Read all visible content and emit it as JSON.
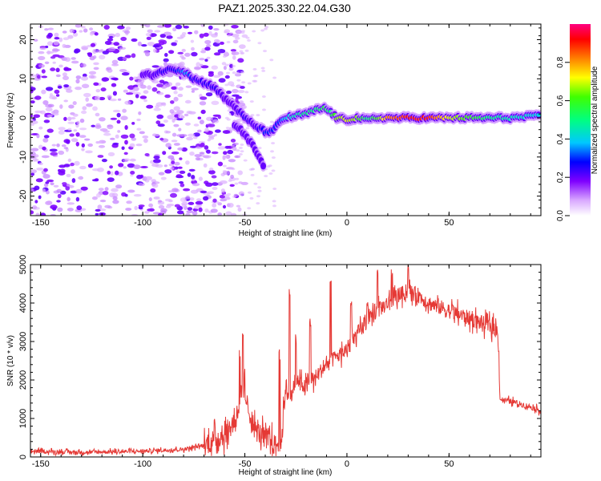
{
  "title": "PAZ1.2025.330.22.04.G30",
  "chart_data": [
    {
      "type": "heatmap",
      "xlabel": "Height of straight line (km)",
      "ylabel": "Frequency (Hz)",
      "xlim": [
        -155,
        95
      ],
      "ylim": [
        -25,
        24
      ],
      "xticks": [
        -150,
        -100,
        -50,
        0,
        50
      ],
      "yticks": [
        -20,
        -10,
        0,
        10,
        20
      ],
      "colorbar": {
        "label": "Normalized spectral amplitude",
        "range": [
          0.0,
          1.0
        ],
        "ticks": [
          0.0,
          0.2,
          0.4,
          0.6,
          0.8
        ],
        "tick_labels": [
          "0.0",
          "0.2",
          "0.4",
          "0.6",
          "0.8"
        ]
      },
      "ridge": [
        {
          "x": -100,
          "f": 11,
          "a": 0.2
        },
        {
          "x": -95,
          "f": 11,
          "a": 0.2
        },
        {
          "x": -90,
          "f": 12,
          "a": 0.25
        },
        {
          "x": -85,
          "f": 12.5,
          "a": 0.25
        },
        {
          "x": -80,
          "f": 12,
          "a": 0.35
        },
        {
          "x": -78,
          "f": 11.5,
          "a": 0.35
        },
        {
          "x": -75,
          "f": 10,
          "a": 0.25
        },
        {
          "x": -70,
          "f": 9,
          "a": 0.25
        },
        {
          "x": -65,
          "f": 8,
          "a": 0.25
        },
        {
          "x": -60,
          "f": 5,
          "a": 0.2
        },
        {
          "x": -55,
          "f": 3,
          "a": 0.2
        },
        {
          "x": -50,
          "f": 0,
          "a": 0.25
        },
        {
          "x": -45,
          "f": -2,
          "a": 0.2
        },
        {
          "x": -40,
          "f": -3.5,
          "a": 0.3
        },
        {
          "x": -36,
          "f": -3.5,
          "a": 0.3
        },
        {
          "x": -33,
          "f": -1,
          "a": 0.3
        },
        {
          "x": -30,
          "f": 0,
          "a": 0.4
        },
        {
          "x": -25,
          "f": 0.5,
          "a": 0.45
        },
        {
          "x": -20,
          "f": 1,
          "a": 0.5
        },
        {
          "x": -15,
          "f": 2,
          "a": 0.5
        },
        {
          "x": -11,
          "f": 2.5,
          "a": 0.55
        },
        {
          "x": -8,
          "f": 1.5,
          "a": 0.5
        },
        {
          "x": -5,
          "f": 0,
          "a": 0.65
        },
        {
          "x": 0,
          "f": -0.5,
          "a": 0.7
        },
        {
          "x": 5,
          "f": 0,
          "a": 0.65
        },
        {
          "x": 10,
          "f": -0.5,
          "a": 0.5
        },
        {
          "x": 15,
          "f": 0,
          "a": 0.6
        },
        {
          "x": 20,
          "f": 0,
          "a": 0.8
        },
        {
          "x": 30,
          "f": 0,
          "a": 0.9
        },
        {
          "x": 40,
          "f": 0,
          "a": 0.9
        },
        {
          "x": 50,
          "f": 0,
          "a": 0.7
        },
        {
          "x": 60,
          "f": 0,
          "a": 0.6
        },
        {
          "x": 70,
          "f": 0,
          "a": 0.5
        },
        {
          "x": 80,
          "f": 0,
          "a": 0.45
        },
        {
          "x": 95,
          "f": 0.5,
          "a": 0.4
        }
      ],
      "branch": [
        {
          "x": -55,
          "f": -2,
          "a": 0.2
        },
        {
          "x": -50,
          "f": -4,
          "a": 0.2
        },
        {
          "x": -45,
          "f": -8,
          "a": 0.2
        },
        {
          "x": -42,
          "f": -11,
          "a": 0.2
        },
        {
          "x": -40,
          "f": -14,
          "a": 0.2
        }
      ],
      "noise_region": {
        "x_from": -155,
        "x_to": -60,
        "f_from": -25,
        "f_to": 24,
        "typical_amplitude": 0.1
      }
    },
    {
      "type": "line",
      "xlabel": "Height of straight line (km)",
      "ylabel": "SNR (10 * v/v)",
      "xlim": [
        -155,
        95
      ],
      "ylim": [
        0,
        5000
      ],
      "xticks": [
        -150,
        -100,
        -50,
        0,
        50
      ],
      "yticks": [
        0,
        1000,
        2000,
        3000,
        4000,
        5000
      ],
      "series": [
        {
          "name": "SNR",
          "color": "#e53935",
          "x": [
            -155,
            -130,
            -100,
            -80,
            -70,
            -60,
            -55,
            -52,
            -50,
            -48,
            -45,
            -40,
            -35,
            -32,
            -30,
            -28,
            -25,
            -20,
            -15,
            -10,
            -5,
            0,
            5,
            10,
            15,
            20,
            25,
            30,
            35,
            40,
            50,
            60,
            70,
            74,
            75,
            80,
            90,
            95
          ],
          "y": [
            150,
            120,
            150,
            200,
            300,
            600,
            900,
            1600,
            1800,
            1200,
            700,
            500,
            300,
            400,
            1900,
            1500,
            2000,
            1800,
            2100,
            2400,
            2600,
            2800,
            3200,
            3500,
            3800,
            4000,
            4200,
            4300,
            4200,
            4000,
            3800,
            3600,
            3400,
            3300,
            1500,
            1450,
            1300,
            1200
          ]
        }
      ],
      "spikes": [
        {
          "x": -51,
          "y": 3400
        },
        {
          "x": -33,
          "y": 2800
        },
        {
          "x": -28,
          "y": 4400
        },
        {
          "x": -25,
          "y": 3200
        },
        {
          "x": -18,
          "y": 3600
        },
        {
          "x": -8,
          "y": 4700
        },
        {
          "x": 2,
          "y": 4200
        },
        {
          "x": 10,
          "y": 4100
        },
        {
          "x": 15,
          "y": 5000
        },
        {
          "x": 22,
          "y": 4900
        },
        {
          "x": 30,
          "y": 5100
        }
      ]
    }
  ]
}
